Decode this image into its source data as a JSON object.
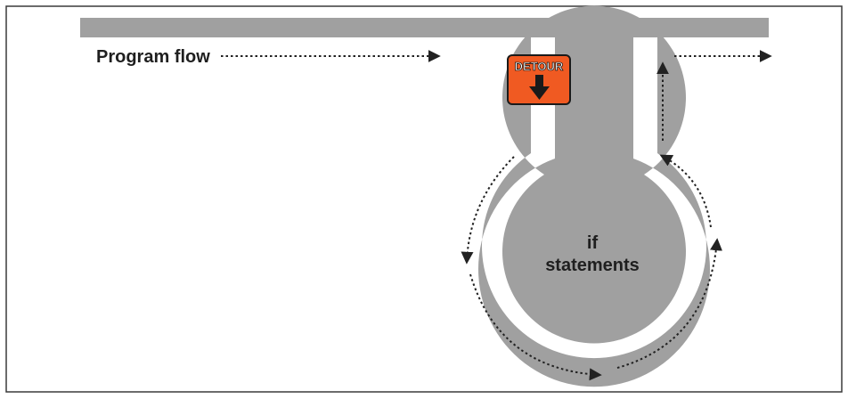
{
  "labels": {
    "program_flow": "Program flow",
    "detour": "DETOUR",
    "if_line1": "if",
    "if_line2": "statements"
  },
  "colors": {
    "pipe": "#a0a0a0",
    "frame": "#3a3a3a",
    "arrow": "#222222",
    "sign_fill": "#f05a22",
    "sign_border": "#1a1a1a",
    "sign_text": "#ffffff",
    "text": "#1f1f1f"
  },
  "icons": {
    "sign": "detour-sign-icon",
    "down_arrow": "arrow-down-icon"
  }
}
